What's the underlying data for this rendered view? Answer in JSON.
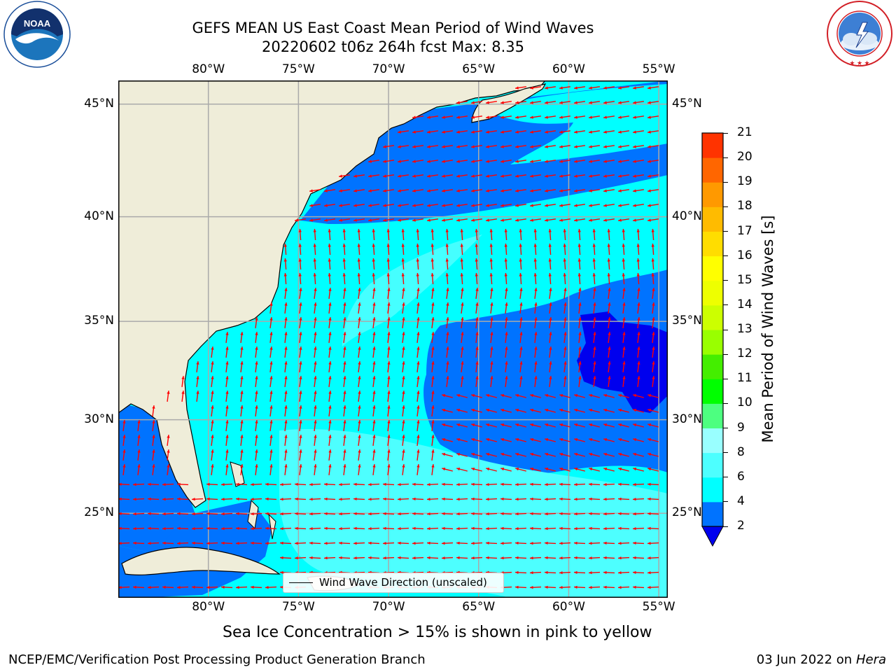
{
  "header": {
    "title_line1": "GEFS MEAN US East Coast Mean Period of Wind Waves",
    "title_line2": "20220602 t06z 264h fcst   Max: 8.35"
  },
  "logos": {
    "left": {
      "name": "noaa-logo",
      "text": "NOAA",
      "ring_text": "NATIONAL OCEANIC AND ATMOSPHERIC ADMINISTRATION · U.S. DEPARTMENT OF COMMERCE"
    },
    "right": {
      "name": "nws-logo",
      "ring_text": "NATIONAL WEATHER SERVICE"
    }
  },
  "map": {
    "lon_ticks": [
      "80°W",
      "75°W",
      "70°W",
      "65°W",
      "60°W",
      "55°W"
    ],
    "lat_ticks": [
      "45°N",
      "40°N",
      "35°N",
      "30°N",
      "25°N"
    ],
    "lon_values": [
      -80,
      -75,
      -70,
      -65,
      -60,
      -55
    ],
    "lat_values": [
      45,
      40,
      35,
      30,
      25
    ],
    "extent": {
      "lon": [
        -85,
        -54.5
      ],
      "lat": [
        20.3,
        46
      ]
    },
    "land_color": "#efedd9",
    "arrow_color": "#ff0000",
    "legend_label": "Wind Wave Direction (unscaled)"
  },
  "colorbar": {
    "label": "Mean Period of Wind Waves [s]",
    "levels": [
      "2",
      "4",
      "6",
      "8",
      "9",
      "10",
      "11",
      "12",
      "13",
      "14",
      "15",
      "16",
      "17",
      "18",
      "19",
      "20",
      "21"
    ],
    "colors": [
      "#0073ff",
      "#00ffff",
      "#4dffff",
      "#99ffff",
      "#4dff80",
      "#00ff00",
      "#44ee00",
      "#99ff00",
      "#ccff00",
      "#eeff00",
      "#ffff00",
      "#ffdd00",
      "#ffbb00",
      "#ff9900",
      "#ff6600",
      "#ff3300",
      "#ff0000"
    ],
    "under_color": "#0000ee"
  },
  "note": "Sea Ice Concentration > 15% is shown in pink to yellow",
  "footer": {
    "left": "NCEP/EMC/Verification Post Processing Product Generation Branch",
    "right_date": "03 Jun 2022 on",
    "right_machine": "Hera"
  }
}
